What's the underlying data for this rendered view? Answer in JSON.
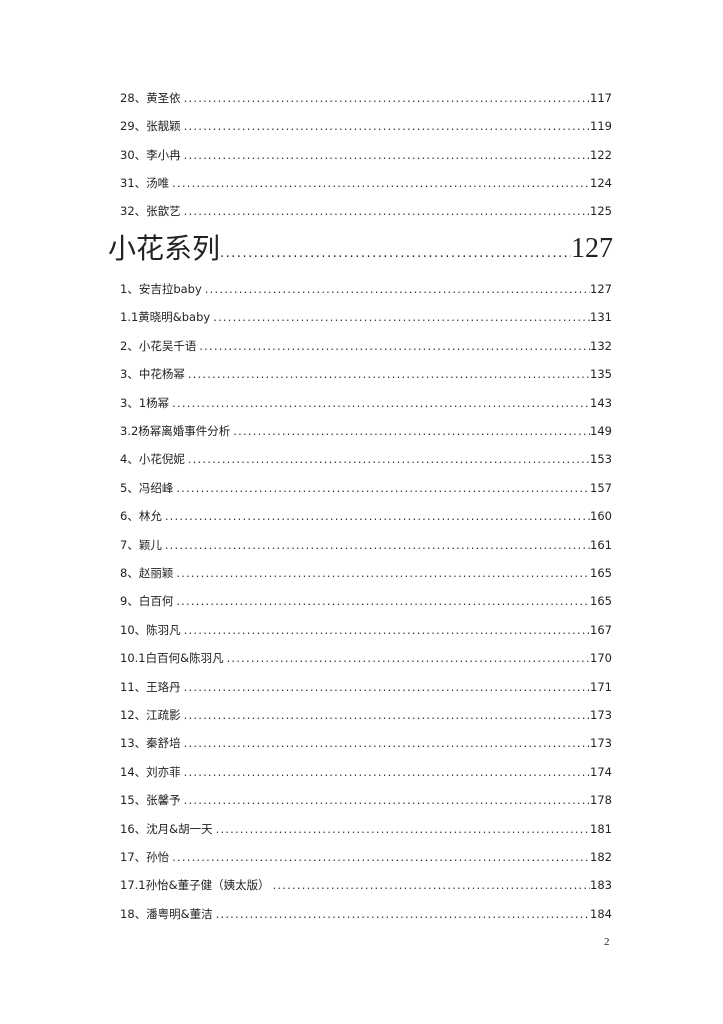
{
  "section_before": [
    {
      "label": "28、黄圣依",
      "page": "117"
    },
    {
      "label": "29、张靓颖",
      "page": "119"
    },
    {
      "label": "30、李小冉",
      "page": "122"
    },
    {
      "label": "31、汤唯",
      "page": "124"
    },
    {
      "label": "32、张歆艺",
      "page": "125"
    }
  ],
  "heading": {
    "label": "小花系列",
    "page": "127"
  },
  "entries": [
    {
      "label": "1、安吉拉baby",
      "page": "127"
    },
    {
      "label": "1.1黄晓明&baby",
      "page": "131"
    },
    {
      "label": "2、小花吴千语",
      "page": "132"
    },
    {
      "label": "3、中花杨幂",
      "page": "135"
    },
    {
      "label": "3、1杨幂",
      "page": "143"
    },
    {
      "label": "3.2杨幂离婚事件分析",
      "page": "149"
    },
    {
      "label": "4、小花倪妮",
      "page": "153"
    },
    {
      "label": "5、冯绍峰",
      "page": "157"
    },
    {
      "label": "6、林允",
      "page": "160"
    },
    {
      "label": "7、颖儿",
      "page": "161"
    },
    {
      "label": "8、赵丽颖",
      "page": "165"
    },
    {
      "label": "9、白百何",
      "page": "165"
    },
    {
      "label": "10、陈羽凡",
      "page": "167"
    },
    {
      "label": "10.1白百何&陈羽凡",
      "page": "170"
    },
    {
      "label": "11、王珞丹",
      "page": "171"
    },
    {
      "label": "12、江疏影",
      "page": "173"
    },
    {
      "label": "13、秦舒培",
      "page": "173"
    },
    {
      "label": "14、刘亦菲",
      "page": "174"
    },
    {
      "label": "15、张馨予",
      "page": "178"
    },
    {
      "label": "16、沈月&胡一天",
      "page": "181"
    },
    {
      "label": "17、孙怡",
      "page": "182"
    },
    {
      "label": "17.1孙怡&董子健（姨太版）",
      "page": "183"
    },
    {
      "label": "18、潘粤明&董洁",
      "page": "184"
    }
  ],
  "page_number": "2"
}
